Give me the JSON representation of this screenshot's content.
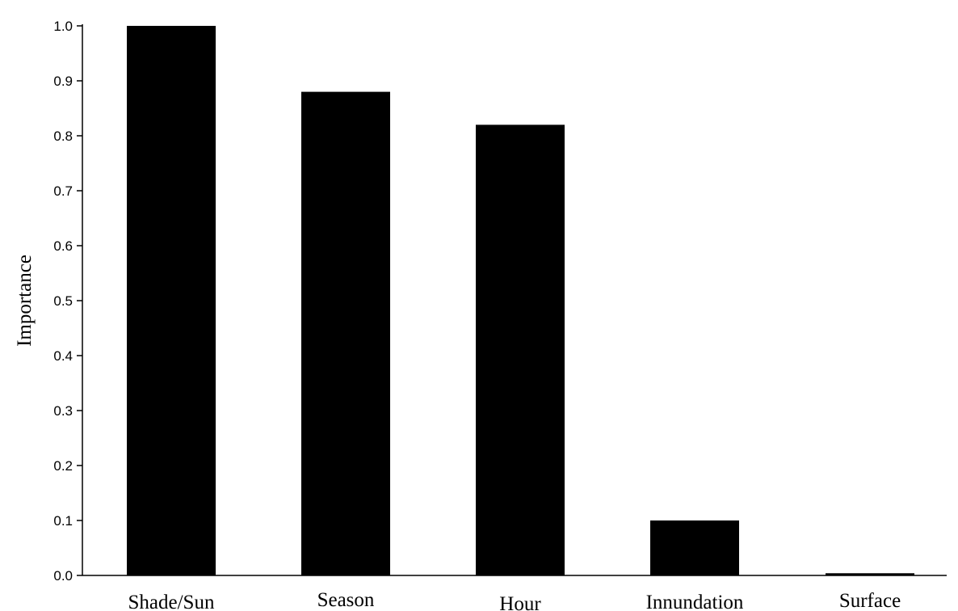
{
  "chart_data": {
    "type": "bar",
    "title": "",
    "xlabel": "",
    "ylabel": "Importance",
    "categories": [
      "Shade/Sun",
      "Season",
      "Hour",
      "Innundation",
      "Surface"
    ],
    "values": [
      1.0,
      0.88,
      0.82,
      0.1,
      0.004
    ],
    "ylim": [
      0,
      1.0
    ],
    "yticks": [
      "0.0",
      "0.1",
      "0.2",
      "0.3",
      "0.4",
      "0.5",
      "0.6",
      "0.7",
      "0.8",
      "0.9",
      "1.0"
    ],
    "grid": false,
    "legend": "none",
    "bar_color": "#000000",
    "axis_color": "#000000"
  }
}
